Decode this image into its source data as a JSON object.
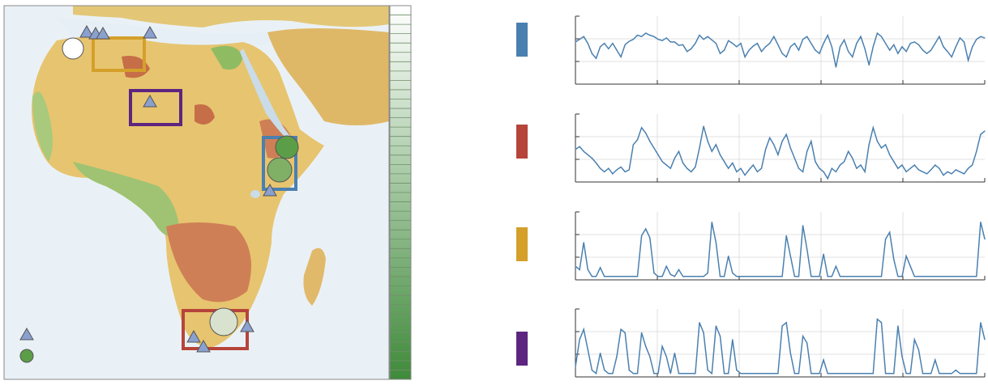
{
  "map": {
    "regions": [
      {
        "key": "blue",
        "color": "#4a80b0"
      },
      {
        "key": "red",
        "color": "#b6443a"
      },
      {
        "key": "yellow",
        "color": "#d4a02a"
      },
      {
        "key": "purple",
        "color": "#5d2580"
      }
    ],
    "marker_colors": {
      "triangle": "#8aa0cf",
      "circle_green": "#5c9e48",
      "circle_white": "#ffffff"
    },
    "legend_icons": [
      "triangle-marker-icon",
      "circle-marker-icon"
    ],
    "colorbar_colors": [
      "#ffffff",
      "#3f8a3a"
    ]
  },
  "chart_data": [
    {
      "type": "line",
      "region": "blue",
      "line_color": "#4a80b0",
      "grid": true,
      "x": [
        0,
        1,
        2,
        3,
        4,
        5,
        6,
        7,
        8,
        9,
        10,
        11,
        12,
        13,
        14,
        15,
        16,
        17,
        18,
        19,
        20,
        21,
        22,
        23,
        24,
        25,
        26,
        27,
        28,
        29,
        30,
        31,
        32,
        33,
        34,
        35,
        36,
        37,
        38,
        39,
        40,
        41,
        42,
        43,
        44,
        45,
        46,
        47,
        48,
        49,
        50,
        51,
        52,
        53,
        54,
        55,
        56,
        57,
        58,
        59,
        60,
        61,
        62,
        63,
        64,
        65,
        66,
        67,
        68,
        69,
        70,
        71,
        72,
        73,
        74,
        75,
        76,
        77,
        78,
        79,
        80,
        81,
        82,
        83,
        84,
        85,
        86,
        87,
        88,
        89,
        90,
        91,
        92,
        93,
        94,
        95,
        96,
        97,
        98,
        99
      ],
      "y": [
        0.62,
        0.66,
        0.7,
        0.6,
        0.45,
        0.38,
        0.55,
        0.6,
        0.52,
        0.6,
        0.5,
        0.4,
        0.58,
        0.63,
        0.66,
        0.72,
        0.7,
        0.75,
        0.72,
        0.7,
        0.66,
        0.64,
        0.68,
        0.62,
        0.62,
        0.57,
        0.58,
        0.48,
        0.52,
        0.6,
        0.72,
        0.66,
        0.7,
        0.65,
        0.6,
        0.45,
        0.5,
        0.64,
        0.6,
        0.55,
        0.6,
        0.4,
        0.5,
        0.56,
        0.6,
        0.48,
        0.55,
        0.6,
        0.7,
        0.58,
        0.45,
        0.4,
        0.55,
        0.6,
        0.5,
        0.66,
        0.7,
        0.6,
        0.5,
        0.45,
        0.6,
        0.72,
        0.55,
        0.25,
        0.55,
        0.65,
        0.48,
        0.4,
        0.6,
        0.7,
        0.52,
        0.28,
        0.55,
        0.75,
        0.7,
        0.6,
        0.5,
        0.58,
        0.45,
        0.55,
        0.48,
        0.6,
        0.62,
        0.58,
        0.5,
        0.45,
        0.5,
        0.6,
        0.7,
        0.55,
        0.48,
        0.4,
        0.55,
        0.68,
        0.62,
        0.35,
        0.55,
        0.66,
        0.7,
        0.68
      ],
      "ylim": [
        0,
        1
      ]
    },
    {
      "type": "line",
      "region": "red",
      "line_color": "#4a80b0",
      "grid": true,
      "x": [
        0,
        1,
        2,
        3,
        4,
        5,
        6,
        7,
        8,
        9,
        10,
        11,
        12,
        13,
        14,
        15,
        16,
        17,
        18,
        19,
        20,
        21,
        22,
        23,
        24,
        25,
        26,
        27,
        28,
        29,
        30,
        31,
        32,
        33,
        34,
        35,
        36,
        37,
        38,
        39,
        40,
        41,
        42,
        43,
        44,
        45,
        46,
        47,
        48,
        49,
        50,
        51,
        52,
        53,
        54,
        55,
        56,
        57,
        58,
        59,
        60,
        61,
        62,
        63,
        64,
        65,
        66,
        67,
        68,
        69,
        70,
        71,
        72,
        73,
        74,
        75,
        76,
        77,
        78,
        79,
        80,
        81,
        82,
        83,
        84,
        85,
        86,
        87,
        88,
        89,
        90,
        91,
        92,
        93,
        94,
        95,
        96,
        97,
        98,
        99
      ],
      "y": [
        0.48,
        0.52,
        0.45,
        0.4,
        0.35,
        0.28,
        0.2,
        0.15,
        0.2,
        0.12,
        0.18,
        0.22,
        0.15,
        0.18,
        0.55,
        0.62,
        0.8,
        0.72,
        0.6,
        0.5,
        0.4,
        0.3,
        0.25,
        0.2,
        0.35,
        0.45,
        0.28,
        0.2,
        0.15,
        0.22,
        0.5,
        0.82,
        0.6,
        0.45,
        0.55,
        0.4,
        0.3,
        0.2,
        0.28,
        0.15,
        0.2,
        0.1,
        0.18,
        0.25,
        0.15,
        0.2,
        0.48,
        0.65,
        0.55,
        0.4,
        0.6,
        0.7,
        0.5,
        0.35,
        0.2,
        0.15,
        0.45,
        0.6,
        0.3,
        0.2,
        0.15,
        0.05,
        0.2,
        0.15,
        0.25,
        0.3,
        0.45,
        0.35,
        0.2,
        0.25,
        0.15,
        0.55,
        0.8,
        0.6,
        0.5,
        0.55,
        0.4,
        0.3,
        0.2,
        0.25,
        0.15,
        0.2,
        0.25,
        0.18,
        0.15,
        0.12,
        0.18,
        0.25,
        0.2,
        0.1,
        0.15,
        0.12,
        0.18,
        0.15,
        0.12,
        0.2,
        0.25,
        0.45,
        0.7,
        0.75
      ],
      "ylim": [
        0,
        1
      ]
    },
    {
      "type": "line",
      "region": "yellow",
      "line_color": "#4a80b0",
      "grid": true,
      "x": [
        0,
        1,
        2,
        3,
        4,
        5,
        6,
        7,
        8,
        9,
        10,
        11,
        12,
        13,
        14,
        15,
        16,
        17,
        18,
        19,
        20,
        21,
        22,
        23,
        24,
        25,
        26,
        27,
        28,
        29,
        30,
        31,
        32,
        33,
        34,
        35,
        36,
        37,
        38,
        39,
        40,
        41,
        42,
        43,
        44,
        45,
        46,
        47,
        48,
        49,
        50,
        51,
        52,
        53,
        54,
        55,
        56,
        57,
        58,
        59,
        60,
        61,
        62,
        63,
        64,
        65,
        66,
        67,
        68,
        69,
        70,
        71,
        72,
        73,
        74,
        75,
        76,
        77,
        78,
        79,
        80,
        81,
        82,
        83,
        84,
        85,
        86,
        87,
        88,
        89,
        90,
        91,
        92,
        93,
        94,
        95,
        96,
        97,
        98,
        99
      ],
      "y": [
        0.2,
        0.15,
        0.55,
        0.15,
        0.05,
        0.05,
        0.18,
        0.05,
        0.05,
        0.05,
        0.05,
        0.05,
        0.05,
        0.05,
        0.05,
        0.05,
        0.65,
        0.75,
        0.62,
        0.1,
        0.05,
        0.05,
        0.2,
        0.08,
        0.05,
        0.15,
        0.05,
        0.05,
        0.05,
        0.05,
        0.05,
        0.05,
        0.1,
        0.85,
        0.55,
        0.05,
        0.05,
        0.35,
        0.1,
        0.05,
        0.05,
        0.05,
        0.05,
        0.05,
        0.05,
        0.05,
        0.05,
        0.05,
        0.05,
        0.05,
        0.05,
        0.65,
        0.35,
        0.05,
        0.05,
        0.8,
        0.45,
        0.05,
        0.05,
        0.05,
        0.38,
        0.05,
        0.05,
        0.2,
        0.05,
        0.05,
        0.05,
        0.05,
        0.05,
        0.05,
        0.05,
        0.05,
        0.05,
        0.05,
        0.05,
        0.6,
        0.7,
        0.3,
        0.05,
        0.05,
        0.35,
        0.2,
        0.05,
        0.05,
        0.05,
        0.05,
        0.05,
        0.05,
        0.05,
        0.05,
        0.05,
        0.05,
        0.05,
        0.05,
        0.05,
        0.05,
        0.05,
        0.05,
        0.85,
        0.6
      ],
      "ylim": [
        0,
        1
      ]
    },
    {
      "type": "line",
      "region": "purple",
      "line_color": "#4a80b0",
      "grid": true,
      "x": [
        0,
        1,
        2,
        3,
        4,
        5,
        6,
        7,
        8,
        9,
        10,
        11,
        12,
        13,
        14,
        15,
        16,
        17,
        18,
        19,
        20,
        21,
        22,
        23,
        24,
        25,
        26,
        27,
        28,
        29,
        30,
        31,
        32,
        33,
        34,
        35,
        36,
        37,
        38,
        39,
        40,
        41,
        42,
        43,
        44,
        45,
        46,
        47,
        48,
        49,
        50,
        51,
        52,
        53,
        54,
        55,
        56,
        57,
        58,
        59,
        60,
        61,
        62,
        63,
        64,
        65,
        66,
        67,
        68,
        69,
        70,
        71,
        72,
        73,
        74,
        75,
        76,
        77,
        78,
        79,
        80,
        81,
        82,
        83,
        84,
        85,
        86,
        87,
        88,
        89,
        90,
        91,
        92,
        93,
        94,
        95,
        96,
        97,
        98,
        99
      ],
      "y": [
        0.15,
        0.55,
        0.7,
        0.4,
        0.1,
        0.05,
        0.35,
        0.1,
        0.05,
        0.05,
        0.3,
        0.7,
        0.65,
        0.1,
        0.05,
        0.05,
        0.65,
        0.45,
        0.3,
        0.05,
        0.05,
        0.45,
        0.3,
        0.05,
        0.35,
        0.05,
        0.05,
        0.05,
        0.05,
        0.05,
        0.8,
        0.65,
        0.1,
        0.05,
        0.75,
        0.6,
        0.05,
        0.05,
        0.55,
        0.1,
        0.05,
        0.05,
        0.05,
        0.05,
        0.05,
        0.05,
        0.05,
        0.05,
        0.05,
        0.05,
        0.75,
        0.8,
        0.35,
        0.05,
        0.05,
        0.6,
        0.5,
        0.05,
        0.05,
        0.05,
        0.25,
        0.05,
        0.05,
        0.05,
        0.05,
        0.05,
        0.05,
        0.05,
        0.05,
        0.05,
        0.05,
        0.05,
        0.05,
        0.85,
        0.8,
        0.05,
        0.05,
        0.05,
        0.75,
        0.3,
        0.05,
        0.05,
        0.55,
        0.4,
        0.05,
        0.05,
        0.05,
        0.25,
        0.05,
        0.05,
        0.05,
        0.05,
        0.1,
        0.05,
        0.05,
        0.05,
        0.05,
        0.05,
        0.8,
        0.55
      ],
      "ylim": [
        0,
        1
      ]
    }
  ]
}
